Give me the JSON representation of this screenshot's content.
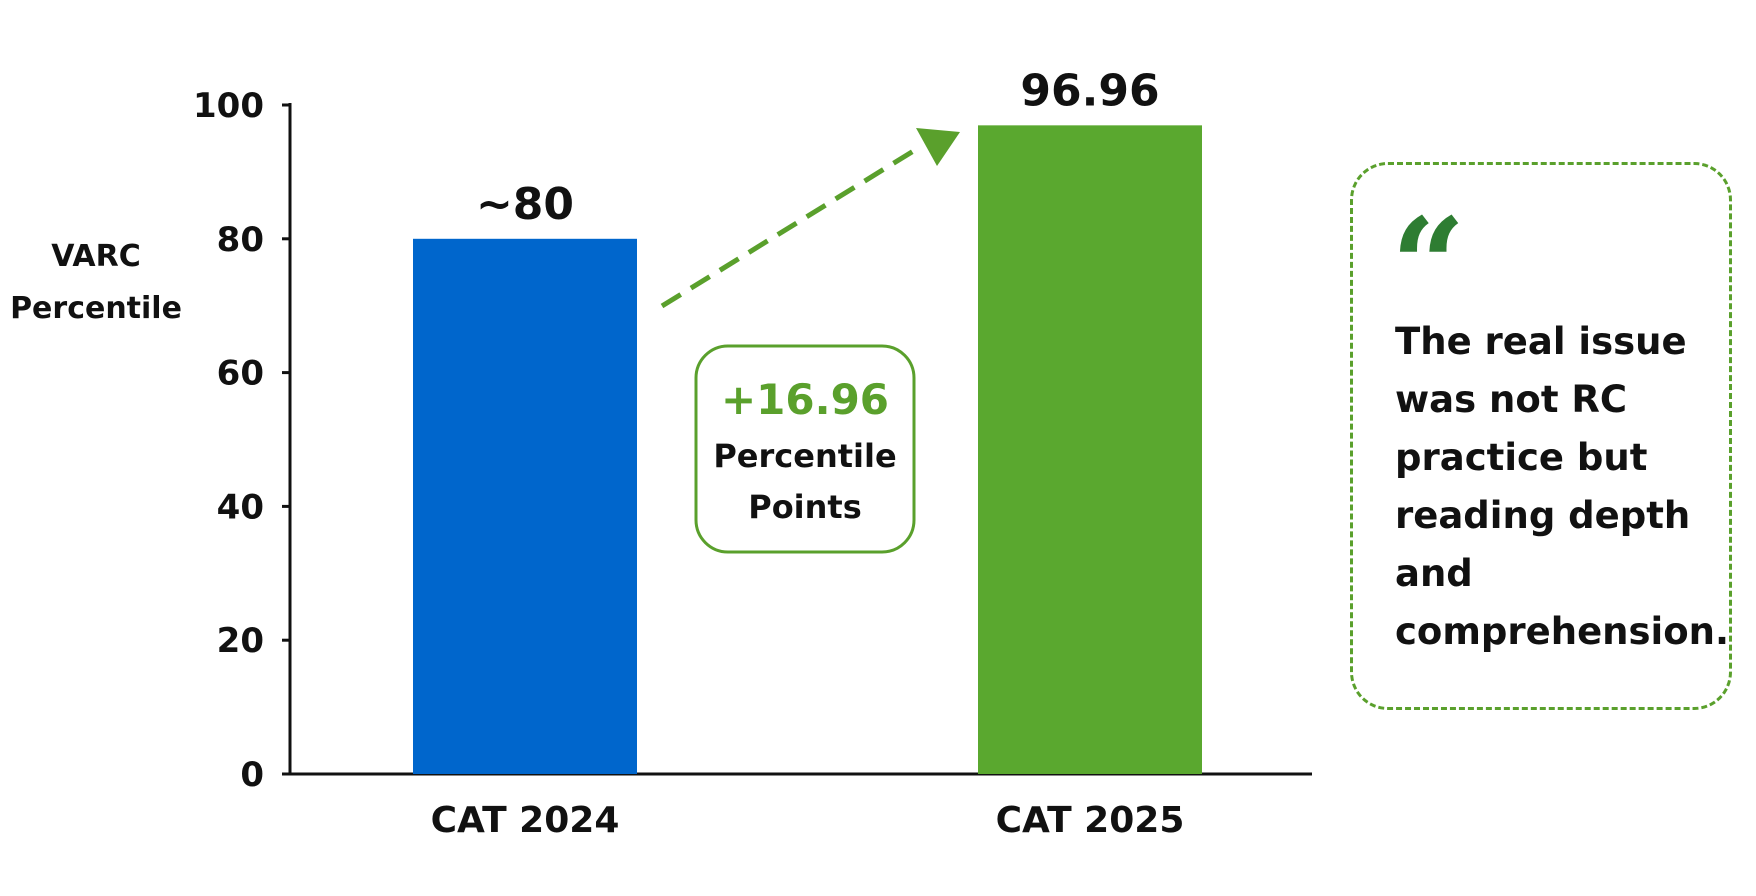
{
  "chart_data": {
    "type": "bar",
    "ylabel_lines": [
      "VARC",
      "Percentile"
    ],
    "xlabel": "",
    "categories": [
      "CAT 2024",
      "CAT 2025"
    ],
    "values": [
      80,
      96.96
    ],
    "value_labels": [
      "~80",
      "96.96"
    ],
    "bar_colors": [
      "#0066cc",
      "#5aa82f"
    ],
    "ylim": [
      0,
      100
    ],
    "yticks": [
      0,
      20,
      40,
      60,
      80,
      100
    ],
    "grid": false,
    "annotation": {
      "change": "+16.96",
      "lines": [
        "Percentile",
        "Points"
      ],
      "color": "#5aa02c"
    }
  },
  "quote": {
    "mark": "“",
    "text": "The real issue was not RC practice but reading depth and comprehension."
  }
}
